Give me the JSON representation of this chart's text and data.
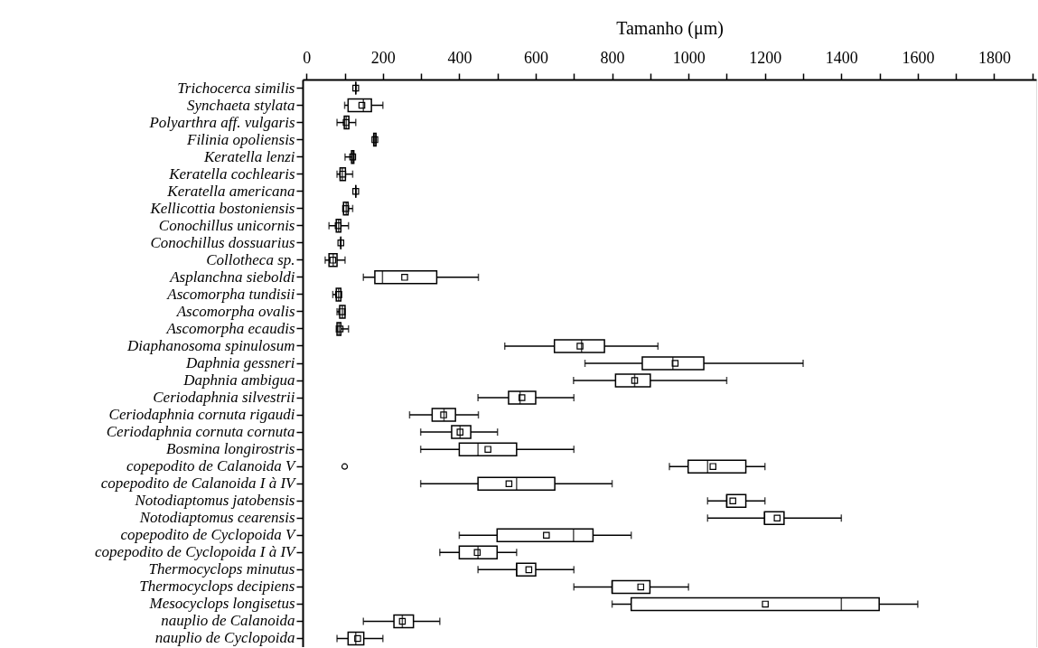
{
  "chart_data": {
    "type": "box",
    "orientation": "horizontal",
    "xlabel": "Tamanho (μm)",
    "categories": [
      "Trichocerca similis",
      "Synchaeta stylata",
      "Polyarthra aff. vulgaris",
      "Filinia opoliensis",
      "Keratella lenzi",
      "Keratella cochlearis",
      "Keratella americana",
      "Kellicottia bostoniensis",
      "Conochillus unicornis",
      "Conochillus dossuarius",
      "Collotheca sp.",
      "Asplanchna sieboldi",
      "Ascomorpha tundisii",
      "Ascomorpha ovalis",
      "Ascomorpha ecaudis",
      "Diaphanosoma spinulosum",
      "Daphnia gessneri",
      "Daphnia ambigua",
      "Ceriodaphnia silvestrii",
      "Ceriodaphnia cornuta rigaudi",
      "Ceriodaphnia cornuta cornuta",
      "Bosmina longirostris",
      "copepodito de Calanoida V",
      "copepodito de Calanoida I à IV",
      "Notodiaptomus jatobensis",
      "Notodiaptomus cearensis",
      "copepodito de Cyclopoida V",
      "copepodito de Cyclopoida I à IV",
      "Thermocyclops minutus",
      "Thermocyclops decipiens",
      "Mesocyclops longisetus",
      "nauplio de Calanoida",
      "nauplio de Cyclopoida"
    ],
    "boxes": [
      {
        "low": 129,
        "q1": 129,
        "median": 129,
        "q3": 129,
        "high": 129,
        "mean": 129
      },
      {
        "low": 100,
        "q1": 109,
        "median": 149,
        "q3": 170,
        "high": 200,
        "mean": 145
      },
      {
        "low": 80,
        "q1": 99,
        "median": 104,
        "q3": 111,
        "high": 129,
        "mean": 104
      },
      {
        "low": 176,
        "q1": 176,
        "median": 179,
        "q3": 182,
        "high": 182,
        "mean": 179
      },
      {
        "low": 101,
        "q1": 118,
        "median": 121,
        "q3": 124,
        "high": 124,
        "mean": 121
      },
      {
        "low": 80,
        "q1": 88,
        "median": 94,
        "q3": 102,
        "high": 121,
        "mean": 95
      },
      {
        "low": 129,
        "q1": 129,
        "median": 129,
        "q3": 129,
        "high": 129,
        "mean": 129
      },
      {
        "low": 95,
        "q1": 97,
        "median": 104,
        "q3": 109,
        "high": 121,
        "mean": 103
      },
      {
        "low": 59,
        "q1": 78,
        "median": 84,
        "q3": 90,
        "high": 110,
        "mean": 83
      },
      {
        "low": 90,
        "q1": 90,
        "median": 90,
        "q3": 90,
        "high": 90,
        "mean": 90
      },
      {
        "low": 49,
        "q1": 59,
        "median": 70,
        "q3": 80,
        "high": 101,
        "mean": 69
      },
      {
        "low": 149,
        "q1": 179,
        "median": 199,
        "q3": 341,
        "high": 450,
        "mean": 257
      },
      {
        "low": 69,
        "q1": 78,
        "median": 84,
        "q3": 90,
        "high": 92,
        "mean": 84
      },
      {
        "low": 80,
        "q1": 87,
        "median": 94,
        "q3": 101,
        "high": 101,
        "mean": 92
      },
      {
        "low": 78,
        "q1": 80,
        "median": 85,
        "q3": 90,
        "high": 110,
        "mean": 88
      },
      {
        "low": 519,
        "q1": 649,
        "median": 720,
        "q3": 780,
        "high": 920,
        "mean": 716
      },
      {
        "low": 729,
        "q1": 879,
        "median": 959,
        "q3": 1040,
        "high": 1300,
        "mean": 965
      },
      {
        "low": 699,
        "q1": 809,
        "median": 859,
        "q3": 900,
        "high": 1100,
        "mean": 859
      },
      {
        "low": 449,
        "q1": 529,
        "median": 559,
        "q3": 600,
        "high": 700,
        "mean": 564
      },
      {
        "low": 270,
        "q1": 329,
        "median": 360,
        "q3": 390,
        "high": 450,
        "mean": 359
      },
      {
        "low": 299,
        "q1": 380,
        "median": 402,
        "q3": 430,
        "high": 500,
        "mean": 402
      },
      {
        "low": 299,
        "q1": 400,
        "median": 449,
        "q3": 550,
        "high": 700,
        "mean": 475
      },
      {
        "low": 950,
        "q1": 999,
        "median": 1050,
        "q3": 1150,
        "high": 1200,
        "mean": 1064,
        "outliers": [
          100
        ]
      },
      {
        "low": 299,
        "q1": 449,
        "median": 550,
        "q3": 650,
        "high": 800,
        "mean": 530
      },
      {
        "low": 1050,
        "q1": 1100,
        "median": 1100,
        "q3": 1150,
        "high": 1200,
        "mean": 1116
      },
      {
        "low": 1050,
        "q1": 1199,
        "median": 1199,
        "q3": 1250,
        "high": 1400,
        "mean": 1232
      },
      {
        "low": 400,
        "q1": 499,
        "median": 699,
        "q3": 750,
        "high": 850,
        "mean": 628
      },
      {
        "low": 349,
        "q1": 400,
        "median": 449,
        "q3": 499,
        "high": 550,
        "mean": 447
      },
      {
        "low": 449,
        "q1": 550,
        "median": 550,
        "q3": 600,
        "high": 700,
        "mean": 582
      },
      {
        "low": 700,
        "q1": 800,
        "median": 800,
        "q3": 899,
        "high": 1000,
        "mean": 875
      },
      {
        "low": 800,
        "q1": 850,
        "median": 1400,
        "q3": 1499,
        "high": 1600,
        "mean": 1201
      },
      {
        "low": 149,
        "q1": 229,
        "median": 251,
        "q3": 280,
        "high": 349,
        "mean": 251
      },
      {
        "low": 80,
        "q1": 109,
        "median": 129,
        "q3": 150,
        "high": 200,
        "mean": 134
      }
    ],
    "xlim": [
      -10,
      1910
    ],
    "xticks": [
      0,
      {
        "value": 100,
        "label": null
      },
      200,
      {
        "value": 300,
        "label": null
      },
      400,
      {
        "value": 500,
        "label": null
      },
      600,
      {
        "value": 700,
        "label": null
      },
      800,
      {
        "value": 900,
        "label": null
      },
      1000,
      {
        "value": 1100,
        "label": null
      },
      1200,
      {
        "value": 1300,
        "label": null
      },
      1400,
      {
        "value": 1500,
        "label": null
      },
      1600,
      {
        "value": 1700,
        "label": null
      },
      1800,
      {
        "value": 1900,
        "label": null
      }
    ],
    "grid": false
  }
}
